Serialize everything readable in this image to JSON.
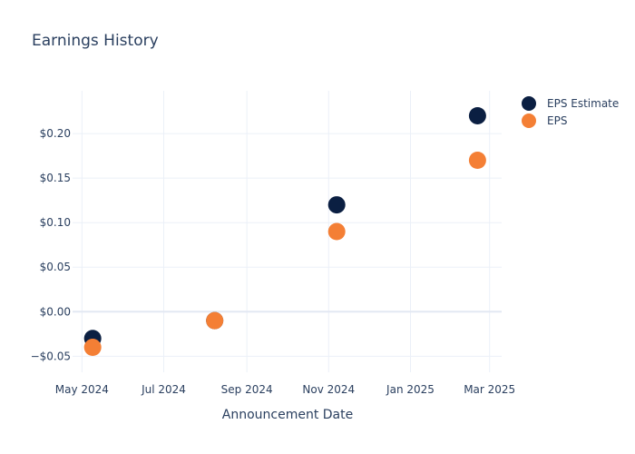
{
  "chart_data": {
    "type": "scatter",
    "title": "Earnings History",
    "xlabel": "Announcement Date",
    "ylabel": "",
    "x_ticks": [
      {
        "date": "2024-05-01",
        "label": "May 2024"
      },
      {
        "date": "2024-07-01",
        "label": "Jul 2024"
      },
      {
        "date": "2024-09-01",
        "label": "Sep 2024"
      },
      {
        "date": "2024-11-01",
        "label": "Nov 2024"
      },
      {
        "date": "2025-01-01",
        "label": "Jan 2025"
      },
      {
        "date": "2025-03-01",
        "label": "Mar 2025"
      }
    ],
    "y_ticks": [
      {
        "value": -0.05,
        "label": "−$0.05"
      },
      {
        "value": 0.0,
        "label": "$0.00"
      },
      {
        "value": 0.05,
        "label": "$0.05"
      },
      {
        "value": 0.1,
        "label": "$0.10"
      },
      {
        "value": 0.15,
        "label": "$0.15"
      },
      {
        "value": 0.2,
        "label": "$0.20"
      }
    ],
    "xlim": [
      "2024-04-24",
      "2025-03-10"
    ],
    "ylim": [
      -0.068,
      0.248
    ],
    "grid": true,
    "legend_position": "top-right",
    "series": [
      {
        "name": "EPS Estimate",
        "color": "#0b1f42",
        "points": [
          {
            "x": "2024-05-09",
            "y": -0.03
          },
          {
            "x": "2024-08-08",
            "y": -0.01
          },
          {
            "x": "2024-11-07",
            "y": 0.12
          },
          {
            "x": "2025-02-20",
            "y": 0.22
          }
        ]
      },
      {
        "name": "EPS",
        "color": "#f47f35",
        "points": [
          {
            "x": "2024-05-09",
            "y": -0.04
          },
          {
            "x": "2024-08-08",
            "y": -0.01
          },
          {
            "x": "2024-11-07",
            "y": 0.09
          },
          {
            "x": "2025-02-20",
            "y": 0.17
          }
        ]
      }
    ]
  }
}
